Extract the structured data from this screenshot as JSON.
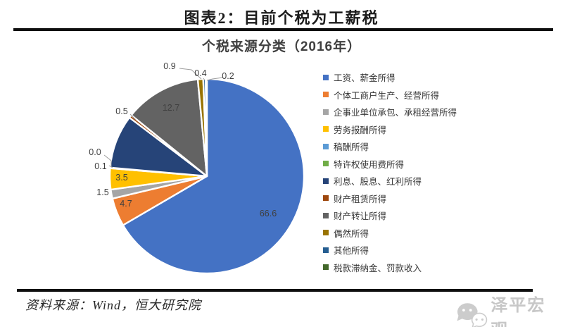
{
  "header": {
    "title": "图表2：目前个税为工薪税"
  },
  "chart_data": {
    "type": "pie",
    "title": "个税来源分类（2016年）",
    "unit": "percent",
    "start_angle_deg": 0,
    "direction": "clockwise",
    "legend_position": "right",
    "slices": [
      {
        "label": "工资、薪金所得",
        "value": 66.6,
        "value_label": "66.6",
        "label_visible": true,
        "color": "#4472C4"
      },
      {
        "label": "个体工商户生产、经营所得",
        "value": 4.7,
        "value_label": "4.7",
        "label_visible": true,
        "color": "#ED7D31"
      },
      {
        "label": "企事业单位承包、承租经营所得",
        "value": 1.5,
        "value_label": "1.5",
        "label_visible": true,
        "color": "#A5A5A5"
      },
      {
        "label": "劳务报酬所得",
        "value": 3.5,
        "value_label": "3.5",
        "label_visible": true,
        "color": "#FFC000"
      },
      {
        "label": "稿酬所得",
        "value": 0.1,
        "value_label": "0.1",
        "label_visible": true,
        "color": "#5B9BD5"
      },
      {
        "label": "特许权使用费所得",
        "value": 0.0,
        "value_label": "0.0",
        "label_visible": true,
        "color": "#70AD47"
      },
      {
        "label": "利息、股息、红利所得",
        "value": 8.9,
        "value_label": "8.9",
        "label_visible": false,
        "color": "#264478"
      },
      {
        "label": "财产租赁所得",
        "value": 0.5,
        "value_label": "0.5",
        "label_visible": true,
        "color": "#9E480E"
      },
      {
        "label": "财产转让所得",
        "value": 12.7,
        "value_label": "12.7",
        "label_visible": true,
        "color": "#636363"
      },
      {
        "label": "偶然所得",
        "value": 0.9,
        "value_label": "0.9",
        "label_visible": true,
        "color": "#997300"
      },
      {
        "label": "其他所得",
        "value": 0.4,
        "value_label": "0.4",
        "label_visible": true,
        "color": "#255E91"
      },
      {
        "label": "税款滞纳金、罚款收入",
        "value": 0.2,
        "value_label": "0.2",
        "label_visible": true,
        "color": "#43682B"
      }
    ]
  },
  "footer": {
    "source": "资料来源：Wind，恒大研究院",
    "brand": "泽平宏观"
  },
  "colors": {
    "rule": "#0f0f0f",
    "slice_border": "#ffffff",
    "data_label_text": "#3f3f3f",
    "leader_line": "#9f9f9f",
    "brand_gray": "#c7c7c7"
  }
}
